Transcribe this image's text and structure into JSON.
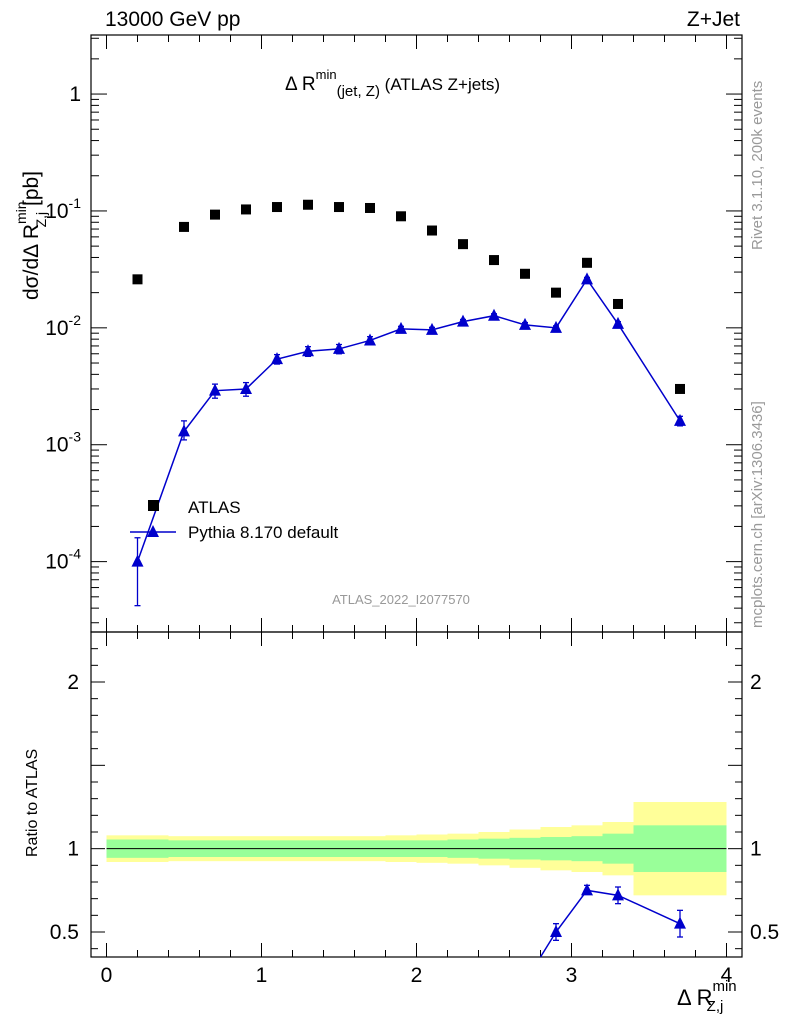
{
  "header": {
    "left": "13000 GeV pp",
    "right": "Z+Jet"
  },
  "side": {
    "top": "Rivet 3.1.10,  200k events",
    "bottom": "mcplots.cern.ch [arXiv:1306.3436]"
  },
  "chart_data": {
    "type": "scatter",
    "title": {
      "main": "Δ R",
      "sup": "min",
      "sub": "(jet, Z)",
      "tail": " (ATLAS Z+jets)"
    },
    "ylabel": {
      "main": "dσ/dΔ R",
      "sup": "min",
      "sub": "Z,j",
      "unit": " [pb]"
    },
    "xlabel": {
      "main": "Δ R",
      "sup": "min",
      "sub": "Z,j"
    },
    "ratio_ylabel": "Ratio to ATLAS",
    "watermark": "ATLAS_2022_I2077570",
    "xlim": [
      -0.1,
      4.1
    ],
    "ylim": [
      2.5e-05,
      3.2
    ],
    "ratio_ylim": [
      0.35,
      2.3
    ],
    "x_ticks": [
      "0",
      "1",
      "2",
      "3",
      "4"
    ],
    "y_ticks": [
      {
        "base": "10",
        "exp": "-4",
        "value": 0.0001
      },
      {
        "base": "10",
        "exp": "-3",
        "value": 0.001
      },
      {
        "base": "10",
        "exp": "-2",
        "value": 0.01
      },
      {
        "base": "10",
        "exp": "-1",
        "value": 0.1
      },
      {
        "base": "1",
        "exp": "",
        "value": 1
      }
    ],
    "ratio_ticks": [
      "0.5",
      "1",
      "2"
    ],
    "legend": [
      {
        "label": "ATLAS",
        "marker": "square",
        "color": "#000000"
      },
      {
        "label": "Pythia 8.170 default",
        "marker": "triangle",
        "color": "#0000cc"
      }
    ],
    "series": [
      {
        "name": "ATLAS",
        "x": [
          0.2,
          0.5,
          0.7,
          0.9,
          1.1,
          1.3,
          1.5,
          1.7,
          1.9,
          2.1,
          2.3,
          2.5,
          2.7,
          2.9,
          3.1,
          3.3,
          3.7
        ],
        "y": [
          0.026,
          0.073,
          0.093,
          0.103,
          0.108,
          0.113,
          0.108,
          0.106,
          0.09,
          0.068,
          0.052,
          0.038,
          0.029,
          0.02,
          0.036,
          0.016,
          0.003
        ]
      },
      {
        "name": "Pythia 8.170 default",
        "x": [
          0.2,
          0.5,
          0.7,
          0.9,
          1.1,
          1.3,
          1.5,
          1.7,
          1.9,
          2.1,
          2.3,
          2.5,
          2.7,
          2.9,
          3.1,
          3.3,
          3.7
        ],
        "y": [
          0.0001,
          0.0013,
          0.0029,
          0.003,
          0.0054,
          0.0063,
          0.0066,
          0.0078,
          0.0098,
          0.0096,
          0.0113,
          0.0127,
          0.0106,
          0.01,
          0.026,
          0.0108,
          0.0016
        ],
        "ylo": [
          4.2e-05,
          0.0011,
          0.0025,
          0.0026,
          0.0049,
          0.0057,
          0.006,
          0.0072,
          0.0093,
          0.0091,
          0.0108,
          0.0122,
          0.0101,
          0.0096,
          0.025,
          0.0103,
          0.00145
        ],
        "yhi": [
          0.00016,
          0.0016,
          0.0033,
          0.0034,
          0.0059,
          0.0069,
          0.0072,
          0.0084,
          0.0103,
          0.0101,
          0.0118,
          0.0132,
          0.0111,
          0.0104,
          0.027,
          0.0113,
          0.00175
        ]
      }
    ],
    "ratio": {
      "x": [
        2.8,
        2.9,
        3.1,
        3.3,
        3.7
      ],
      "y": [
        0.35,
        0.5,
        0.75,
        0.72,
        0.55
      ],
      "ylo": [
        null,
        0.45,
        0.73,
        0.67,
        0.47
      ],
      "yhi": [
        null,
        0.55,
        0.78,
        0.77,
        0.63
      ]
    },
    "bands": {
      "edges": [
        0.0,
        0.4,
        0.6,
        0.8,
        1.0,
        1.2,
        1.4,
        1.6,
        1.8,
        2.0,
        2.2,
        2.4,
        2.6,
        2.8,
        3.0,
        3.2,
        3.4,
        4.0
      ],
      "inner": [
        0.055,
        0.05,
        0.05,
        0.05,
        0.05,
        0.05,
        0.05,
        0.05,
        0.05,
        0.05,
        0.055,
        0.06,
        0.065,
        0.07,
        0.075,
        0.09,
        0.14
      ],
      "outer": [
        0.08,
        0.075,
        0.075,
        0.075,
        0.075,
        0.075,
        0.075,
        0.075,
        0.08,
        0.085,
        0.09,
        0.1,
        0.115,
        0.13,
        0.14,
        0.16,
        0.28
      ],
      "inner_color": "#99ff99",
      "outer_color": "#ffff99"
    }
  }
}
